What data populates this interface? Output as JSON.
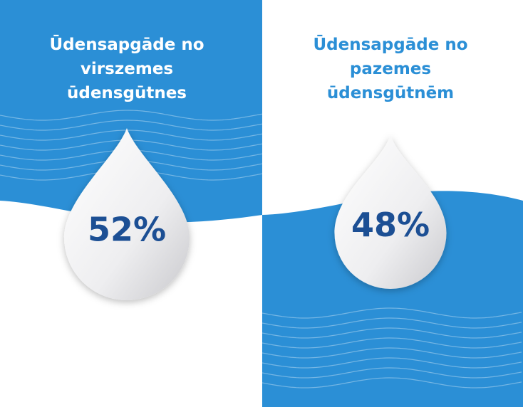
{
  "panels": [
    {
      "title_lines": [
        "Ūdensapgāde no",
        "virszemes",
        "ūdensgūtnes"
      ],
      "value": "52%"
    },
    {
      "title_lines": [
        "Ūdensapgāde no",
        "pazemes",
        "ūdensgūtnēm"
      ],
      "value": "48%"
    }
  ]
}
